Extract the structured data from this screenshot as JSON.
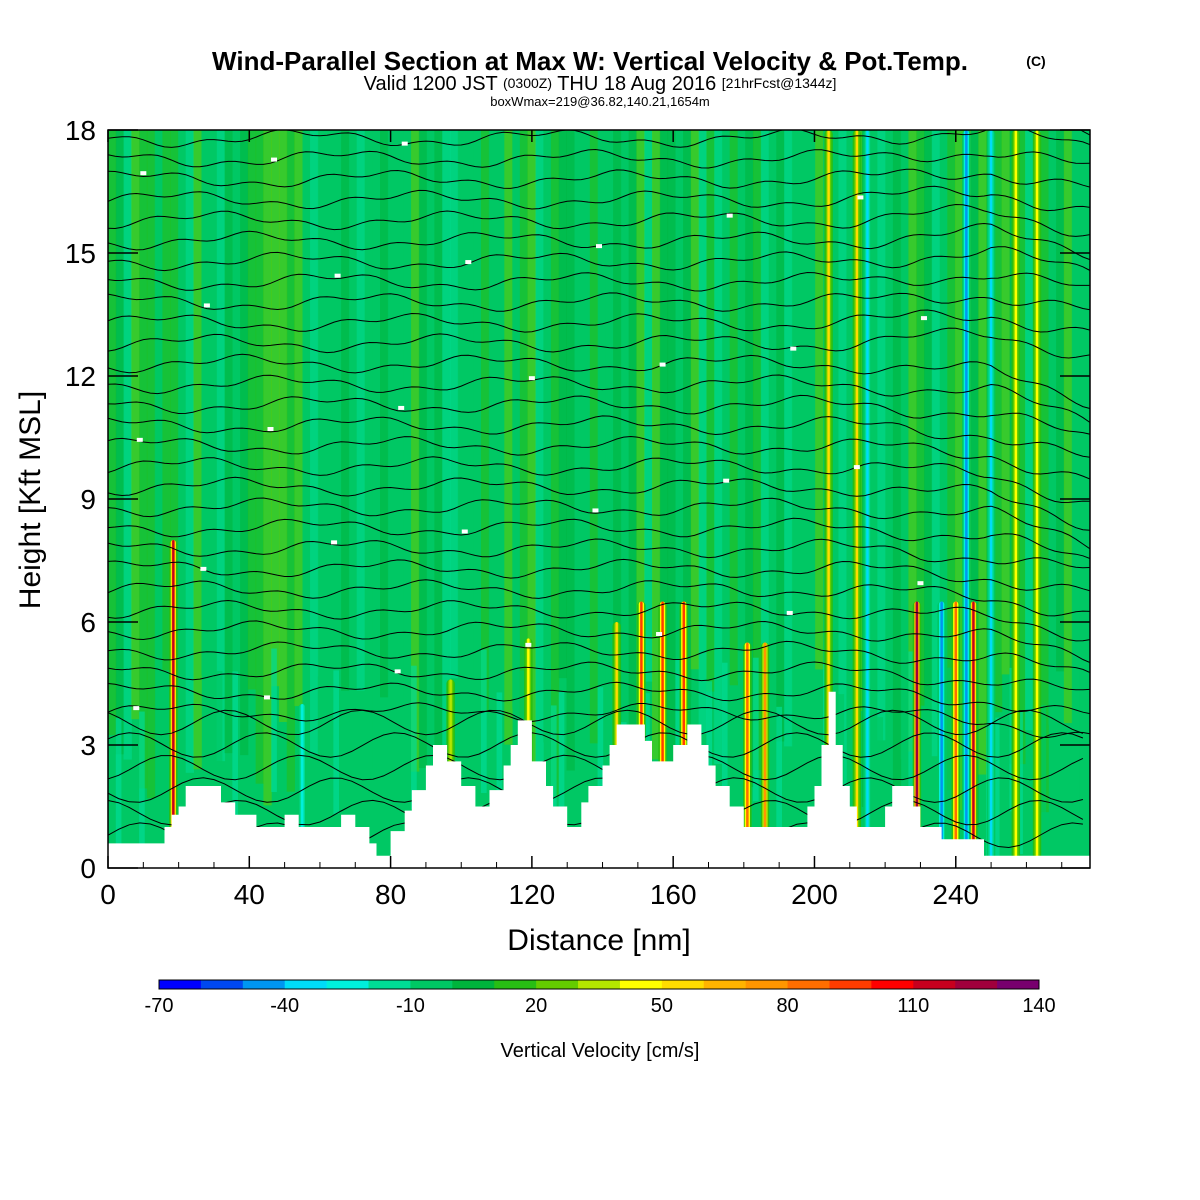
{
  "title": {
    "main": "Wind-Parallel Section at Max W: Vertical Velocity & Pot.Temp.",
    "copyright": "(C)",
    "valid_prefix": "Valid 1200 JST",
    "valid_utc": "(0300Z)",
    "valid_date": "THU 18 Aug 2016",
    "forecast": "[21hrFcst@1344z]",
    "box": "boxWmax=219@36.82,140.21,1654m"
  },
  "chart_data": {
    "type": "heatmap",
    "xlabel": "Distance [nm]",
    "ylabel": "Height [Kft MSL]",
    "xlim": [
      0,
      278
    ],
    "ylim": [
      0,
      18
    ],
    "xticks": [
      "0",
      "40",
      "80",
      "120",
      "160",
      "200",
      "240"
    ],
    "yticks": [
      "0",
      "3",
      "6",
      "9",
      "12",
      "15",
      "18"
    ],
    "background_w": -5,
    "updraft_columns": [
      {
        "x": 18.5,
        "w": 110,
        "top": 8
      },
      {
        "x": 97,
        "w": 35,
        "top": 4.6
      },
      {
        "x": 119,
        "w": 40,
        "top": 5.6
      },
      {
        "x": 144,
        "w": 55,
        "top": 6
      },
      {
        "x": 151,
        "w": 95,
        "top": 6.5
      },
      {
        "x": 157,
        "w": 90,
        "top": 6.5
      },
      {
        "x": 163,
        "w": 95,
        "top": 6.5
      },
      {
        "x": 181,
        "w": 85,
        "top": 5.5
      },
      {
        "x": 186,
        "w": 70,
        "top": 5.5
      },
      {
        "x": 204,
        "w": 50,
        "top": 18
      },
      {
        "x": 212,
        "w": 55,
        "top": 18
      },
      {
        "x": 229,
        "w": 120,
        "top": 6.5
      },
      {
        "x": 240,
        "w": 80,
        "top": 6.5
      },
      {
        "x": 245,
        "w": 110,
        "top": 6.5
      },
      {
        "x": 257,
        "w": 40,
        "top": 18
      },
      {
        "x": 263,
        "w": 40,
        "top": 18
      }
    ],
    "downdraft_columns": [
      {
        "x": 55,
        "w": -30,
        "top": 4
      },
      {
        "x": 215,
        "w": -40,
        "top": 18
      },
      {
        "x": 236,
        "w": -50,
        "top": 6.5
      },
      {
        "x": 243,
        "w": -45,
        "top": 18
      },
      {
        "x": 250,
        "w": -35,
        "top": 18
      }
    ],
    "terrain_profile": [
      [
        0,
        0.6
      ],
      [
        8,
        0.6
      ],
      [
        16,
        0.6
      ],
      [
        16,
        1.0
      ],
      [
        18,
        1.0
      ],
      [
        18,
        1.3
      ],
      [
        20,
        1.3
      ],
      [
        20,
        1.5
      ],
      [
        22,
        1.5
      ],
      [
        22,
        2.0
      ],
      [
        32,
        2.0
      ],
      [
        32,
        1.6
      ],
      [
        36,
        1.6
      ],
      [
        36,
        1.3
      ],
      [
        42,
        1.3
      ],
      [
        42,
        1.0
      ],
      [
        50,
        1.0
      ],
      [
        50,
        1.3
      ],
      [
        54,
        1.3
      ],
      [
        54,
        1.0
      ],
      [
        66,
        1.0
      ],
      [
        66,
        1.3
      ],
      [
        70,
        1.3
      ],
      [
        70,
        1.0
      ],
      [
        74,
        1.0
      ],
      [
        74,
        0.6
      ],
      [
        76,
        0.6
      ],
      [
        76,
        0.3
      ],
      [
        80,
        0.3
      ],
      [
        80,
        0.9
      ],
      [
        84,
        0.9
      ],
      [
        84,
        1.4
      ],
      [
        86,
        1.4
      ],
      [
        86,
        1.9
      ],
      [
        90,
        1.9
      ],
      [
        90,
        2.5
      ],
      [
        92,
        2.5
      ],
      [
        92,
        3.0
      ],
      [
        96,
        3.0
      ],
      [
        96,
        2.6
      ],
      [
        100,
        2.6
      ],
      [
        100,
        2.0
      ],
      [
        104,
        2.0
      ],
      [
        104,
        1.5
      ],
      [
        108,
        1.5
      ],
      [
        108,
        1.9
      ],
      [
        112,
        1.9
      ],
      [
        112,
        2.5
      ],
      [
        114,
        2.5
      ],
      [
        114,
        3.0
      ],
      [
        116,
        3.0
      ],
      [
        116,
        3.6
      ],
      [
        120,
        3.6
      ],
      [
        120,
        2.6
      ],
      [
        124,
        2.6
      ],
      [
        124,
        2.0
      ],
      [
        126,
        2.0
      ],
      [
        126,
        1.5
      ],
      [
        130,
        1.5
      ],
      [
        130,
        1.0
      ],
      [
        134,
        1.0
      ],
      [
        134,
        1.6
      ],
      [
        136,
        1.6
      ],
      [
        136,
        2.0
      ],
      [
        140,
        2.0
      ],
      [
        140,
        2.5
      ],
      [
        142,
        2.5
      ],
      [
        142,
        3.0
      ],
      [
        144,
        3.0
      ],
      [
        144,
        3.5
      ],
      [
        152,
        3.5
      ],
      [
        152,
        3.1
      ],
      [
        154,
        3.1
      ],
      [
        154,
        2.6
      ],
      [
        160,
        2.6
      ],
      [
        160,
        3.0
      ],
      [
        164,
        3.0
      ],
      [
        164,
        3.5
      ],
      [
        168,
        3.5
      ],
      [
        168,
        3.0
      ],
      [
        170,
        3.0
      ],
      [
        170,
        2.5
      ],
      [
        172,
        2.5
      ],
      [
        172,
        2.0
      ],
      [
        176,
        2.0
      ],
      [
        176,
        1.5
      ],
      [
        180,
        1.5
      ],
      [
        180,
        1.0
      ],
      [
        198,
        1.0
      ],
      [
        198,
        1.5
      ],
      [
        200,
        1.5
      ],
      [
        200,
        2.0
      ],
      [
        202,
        2.0
      ],
      [
        202,
        3.0
      ],
      [
        204,
        3.0
      ],
      [
        204,
        4.3
      ],
      [
        206,
        4.3
      ],
      [
        206,
        3.0
      ],
      [
        208,
        3.0
      ],
      [
        208,
        2.0
      ],
      [
        210,
        2.0
      ],
      [
        210,
        1.5
      ],
      [
        212,
        1.5
      ],
      [
        212,
        1.0
      ],
      [
        220,
        1.0
      ],
      [
        220,
        1.5
      ],
      [
        222,
        1.5
      ],
      [
        222,
        2.0
      ],
      [
        228,
        2.0
      ],
      [
        228,
        1.5
      ],
      [
        230,
        1.5
      ],
      [
        230,
        1.0
      ],
      [
        236,
        1.0
      ],
      [
        236,
        0.7
      ],
      [
        248,
        0.7
      ],
      [
        248,
        0.3
      ],
      [
        278,
        0.3
      ]
    ],
    "isentrope_count": 30,
    "contour_labels_note": "small white flags along isentropes"
  },
  "colorbar": {
    "label": "Vertical Velocity [cm/s]",
    "min": -70,
    "max": 140,
    "step": 10,
    "tick_labels": [
      "-70",
      "-40",
      "-10",
      "20",
      "50",
      "80",
      "110",
      "140"
    ],
    "colors": [
      "#0000ff",
      "#0048f0",
      "#0096f0",
      "#00dcf8",
      "#00f0dc",
      "#00dc96",
      "#00c864",
      "#00b43c",
      "#28be14",
      "#64cc00",
      "#b4e600",
      "#ffff00",
      "#ffdc00",
      "#ffb400",
      "#ff9600",
      "#ff6e00",
      "#ff3c00",
      "#ff0000",
      "#c8001e",
      "#a0003c",
      "#78006e"
    ]
  }
}
